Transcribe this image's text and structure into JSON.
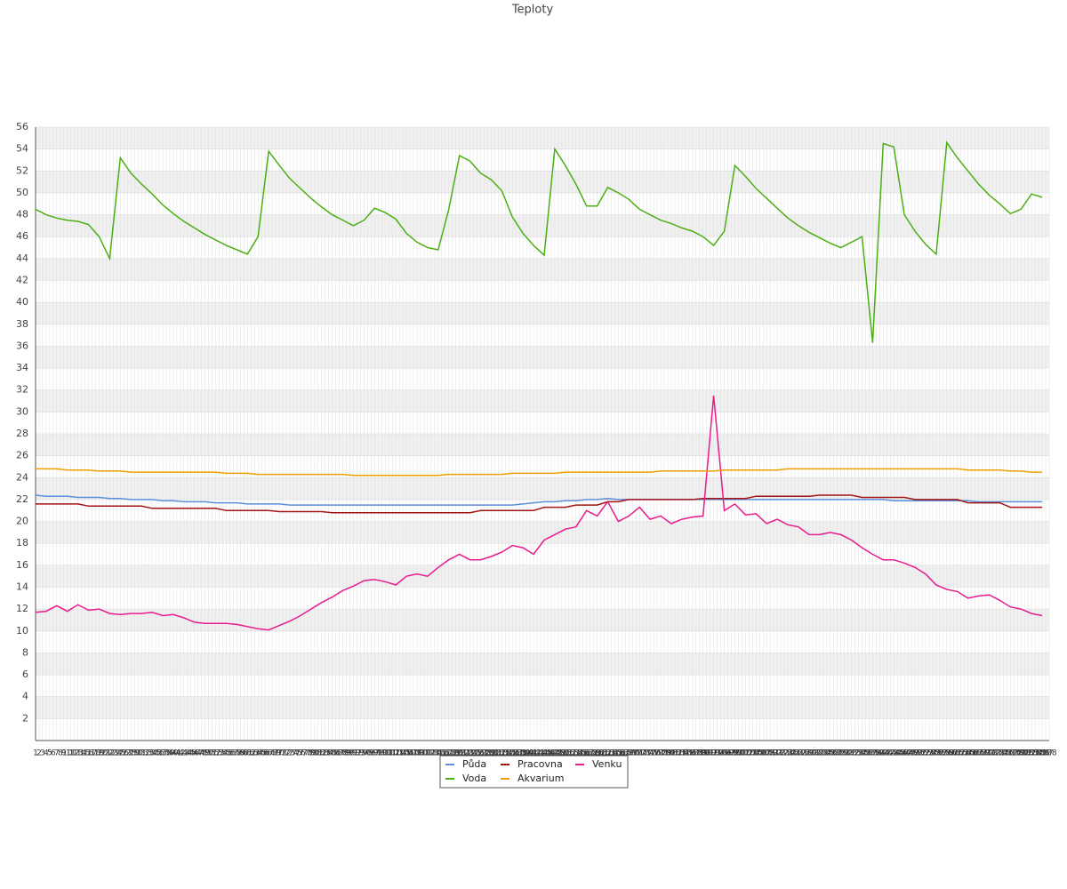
{
  "chart_data": {
    "type": "line",
    "title": "Teploty",
    "x": [
      1,
      4,
      7,
      10,
      13,
      16,
      19,
      22,
      25,
      28,
      31,
      34,
      37,
      40,
      43,
      46,
      49,
      52,
      55,
      58,
      61,
      64,
      67,
      70,
      73,
      76,
      79,
      82,
      85,
      88,
      91,
      94,
      97,
      100,
      103,
      106,
      109,
      112,
      115,
      118,
      121,
      124,
      127,
      130,
      133,
      136,
      139,
      142,
      145,
      148,
      151,
      154,
      157,
      160,
      163,
      166,
      169,
      172,
      175,
      178,
      181,
      184,
      187,
      190,
      193,
      196,
      199,
      202,
      205,
      208,
      211,
      214,
      217,
      220,
      223,
      226,
      229,
      232,
      235,
      238,
      241,
      244,
      247,
      250,
      253,
      256,
      259,
      262,
      265,
      268,
      271,
      274,
      277,
      280,
      283,
      286
    ],
    "series": [
      {
        "name": "Půda",
        "color": "#5b8fd9",
        "values": [
          22.4,
          22.3,
          22.3,
          22.3,
          22.2,
          22.2,
          22.2,
          22.1,
          22.1,
          22.0,
          22.0,
          22.0,
          21.9,
          21.9,
          21.8,
          21.8,
          21.8,
          21.7,
          21.7,
          21.7,
          21.6,
          21.6,
          21.6,
          21.6,
          21.5,
          21.5,
          21.5,
          21.5,
          21.5,
          21.5,
          21.5,
          21.5,
          21.5,
          21.5,
          21.5,
          21.5,
          21.5,
          21.5,
          21.5,
          21.5,
          21.5,
          21.5,
          21.5,
          21.5,
          21.5,
          21.5,
          21.6,
          21.7,
          21.8,
          21.8,
          21.9,
          21.9,
          22.0,
          22.0,
          22.1,
          22.0,
          22.0,
          22.0,
          22.0,
          22.0,
          22.0,
          22.0,
          22.0,
          22.0,
          22.0,
          22.0,
          22.0,
          22.0,
          22.0,
          22.0,
          22.0,
          22.0,
          22.0,
          22.0,
          22.0,
          22.0,
          22.0,
          22.0,
          22.0,
          22.0,
          22.0,
          21.9,
          21.9,
          21.9,
          21.9,
          21.9,
          21.9,
          21.9,
          21.9,
          21.8,
          21.8,
          21.8,
          21.8,
          21.8,
          21.8,
          21.8
        ]
      },
      {
        "name": "Pracovna",
        "color": "#a31515",
        "values": [
          21.6,
          21.6,
          21.6,
          21.6,
          21.6,
          21.4,
          21.4,
          21.4,
          21.4,
          21.4,
          21.4,
          21.2,
          21.2,
          21.2,
          21.2,
          21.2,
          21.2,
          21.2,
          21.0,
          21.0,
          21.0,
          21.0,
          21.0,
          20.9,
          20.9,
          20.9,
          20.9,
          20.9,
          20.8,
          20.8,
          20.8,
          20.8,
          20.8,
          20.8,
          20.8,
          20.8,
          20.8,
          20.8,
          20.8,
          20.8,
          20.8,
          20.8,
          21.0,
          21.0,
          21.0,
          21.0,
          21.0,
          21.0,
          21.3,
          21.3,
          21.3,
          21.5,
          21.5,
          21.5,
          21.8,
          21.8,
          22.0,
          22.0,
          22.0,
          22.0,
          22.0,
          22.0,
          22.0,
          22.1,
          22.1,
          22.1,
          22.1,
          22.1,
          22.3,
          22.3,
          22.3,
          22.3,
          22.3,
          22.3,
          22.4,
          22.4,
          22.4,
          22.4,
          22.2,
          22.2,
          22.2,
          22.2,
          22.2,
          22.0,
          22.0,
          22.0,
          22.0,
          22.0,
          21.7,
          21.7,
          21.7,
          21.7,
          21.3,
          21.3,
          21.3,
          21.3
        ]
      },
      {
        "name": "Venku",
        "color": "#e81c8c",
        "values": [
          11.7,
          11.8,
          12.3,
          11.8,
          12.4,
          11.9,
          12,
          11.6,
          11.5,
          11.6,
          11.6,
          11.7,
          11.4,
          11.5,
          11.2,
          10.8,
          10.7,
          10.7,
          10.7,
          10.6,
          10.4,
          10.2,
          10.1,
          10.5,
          10.9,
          11.4,
          12,
          12.6,
          13.1,
          13.7,
          14.1,
          14.6,
          14.7,
          14.5,
          14.2,
          15,
          15.2,
          15,
          15.8,
          16.5,
          17,
          16.5,
          16.5,
          16.8,
          17.2,
          17.8,
          17.6,
          17,
          18.3,
          18.8,
          19.3,
          19.5,
          21,
          20.5,
          21.8,
          20,
          20.5,
          21.3,
          20.2,
          20.5,
          19.8,
          20.2,
          20.4,
          20.5,
          31.5,
          21,
          21.6,
          20.6,
          20.7,
          19.8,
          20.2,
          19.7,
          19.5,
          18.8,
          18.8,
          19,
          18.8,
          18.3,
          17.6,
          17,
          16.5,
          16.5,
          16.2,
          15.8,
          15.2,
          14.2,
          13.8,
          13.6,
          13,
          13.2,
          13.3,
          12.8,
          12.2,
          12,
          11.6,
          11.4
        ]
      },
      {
        "name": "Voda",
        "color": "#4caf14",
        "values": [
          48.5,
          48,
          47.7,
          47.5,
          47.4,
          47.1,
          46,
          44,
          53.2,
          51.8,
          50.8,
          49.9,
          48.9,
          48.1,
          47.4,
          46.8,
          46.2,
          45.7,
          45.2,
          44.8,
          44.4,
          46,
          53.8,
          52.5,
          51.3,
          50.4,
          49.5,
          48.7,
          48,
          47.5,
          47,
          47.5,
          48.6,
          48.2,
          47.6,
          46.3,
          45.5,
          45,
          44.8,
          48.5,
          53.4,
          52.9,
          51.8,
          51.2,
          50.2,
          47.8,
          46.3,
          45.2,
          44.3,
          54,
          52.5,
          50.8,
          48.8,
          48.8,
          50.5,
          50,
          49.4,
          48.5,
          48,
          47.5,
          47.2,
          46.8,
          46.5,
          46,
          45.2,
          46.5,
          52.5,
          51.5,
          50.4,
          49.5,
          48.6,
          47.7,
          47,
          46.4,
          45.9,
          45.4,
          45,
          45.5,
          46,
          36.3,
          54.5,
          54.2,
          48,
          46.5,
          45.3,
          44.4,
          54.6,
          53.2,
          52,
          50.8,
          49.8,
          49,
          48.1,
          48.5,
          49.9,
          49.6
        ]
      },
      {
        "name": "Akvarium",
        "color": "#f0a000",
        "values": [
          24.8,
          24.8,
          24.8,
          24.7,
          24.7,
          24.7,
          24.6,
          24.6,
          24.6,
          24.5,
          24.5,
          24.5,
          24.5,
          24.5,
          24.5,
          24.5,
          24.5,
          24.5,
          24.4,
          24.4,
          24.4,
          24.3,
          24.3,
          24.3,
          24.3,
          24.3,
          24.3,
          24.3,
          24.3,
          24.3,
          24.2,
          24.2,
          24.2,
          24.2,
          24.2,
          24.2,
          24.2,
          24.2,
          24.2,
          24.3,
          24.3,
          24.3,
          24.3,
          24.3,
          24.3,
          24.4,
          24.4,
          24.4,
          24.4,
          24.4,
          24.5,
          24.5,
          24.5,
          24.5,
          24.5,
          24.5,
          24.5,
          24.5,
          24.5,
          24.6,
          24.6,
          24.6,
          24.6,
          24.6,
          24.6,
          24.7,
          24.7,
          24.7,
          24.7,
          24.7,
          24.7,
          24.8,
          24.8,
          24.8,
          24.8,
          24.8,
          24.8,
          24.8,
          24.8,
          24.8,
          24.8,
          24.8,
          24.8,
          24.8,
          24.8,
          24.8,
          24.8,
          24.8,
          24.7,
          24.7,
          24.7,
          24.7,
          24.6,
          24.6,
          24.5,
          24.5
        ]
      }
    ],
    "xlim": [
      1,
      288
    ],
    "xticks": [
      1,
      2,
      3,
      4,
      5,
      6,
      7,
      8,
      9,
      10,
      11,
      12,
      13,
      14,
      15,
      16,
      17,
      18,
      19,
      20,
      21,
      22,
      23,
      24,
      25,
      26,
      27,
      28,
      29,
      30,
      31,
      32,
      33,
      34,
      35,
      36,
      37,
      38,
      39,
      40,
      41,
      42,
      43,
      44,
      45,
      46,
      47,
      48,
      49,
      50,
      51,
      52,
      53,
      54,
      55,
      56,
      57,
      58,
      59,
      60,
      61,
      62,
      63,
      64,
      65,
      66,
      67,
      68,
      69,
      70,
      71,
      72,
      73,
      74,
      75,
      76,
      77,
      78,
      79,
      80,
      81,
      82,
      83,
      84,
      85,
      86,
      87,
      88,
      89,
      90,
      91,
      92,
      93,
      94,
      95,
      96,
      97,
      98,
      99,
      100,
      101,
      102,
      103,
      104,
      105,
      106,
      107,
      108,
      109,
      110,
      111,
      112,
      113,
      114,
      115,
      116,
      117,
      118,
      119,
      120,
      121,
      122,
      123,
      124,
      125,
      126,
      127,
      128,
      129,
      130,
      131,
      132,
      133,
      134,
      135,
      136,
      137,
      138,
      139,
      140,
      141,
      142,
      143,
      144,
      145,
      146,
      147,
      148,
      149,
      150,
      151,
      152,
      153,
      154,
      155,
      156,
      157,
      158,
      159,
      160,
      161,
      162,
      163,
      164,
      165,
      166,
      167,
      168,
      169,
      170,
      171,
      172,
      173,
      174,
      175,
      176,
      177,
      178,
      179,
      180,
      181,
      182,
      183,
      184,
      185,
      186,
      187,
      188,
      189,
      190,
      191,
      192,
      193,
      194,
      195,
      196,
      197,
      198,
      199,
      200,
      201,
      202,
      203,
      204,
      205,
      206,
      207,
      208,
      209,
      210,
      211,
      212,
      213,
      214,
      215,
      216,
      217,
      218,
      219,
      220,
      221,
      222,
      223,
      224,
      225,
      226,
      227,
      228,
      229,
      230,
      231,
      232,
      233,
      234,
      235,
      236,
      237,
      238,
      239,
      240,
      241,
      242,
      243,
      244,
      245,
      246,
      247,
      248,
      249,
      250,
      251,
      252,
      253,
      254,
      255,
      256,
      257,
      258,
      259,
      260,
      261,
      262,
      263,
      264,
      265,
      266,
      267,
      268,
      269,
      270,
      271,
      272,
      273,
      274,
      275,
      276,
      277,
      278,
      279,
      280,
      281,
      282,
      283,
      284,
      285,
      286,
      287,
      288
    ],
    "ylim": [
      0,
      56
    ],
    "yticks": [
      2,
      4,
      6,
      8,
      10,
      12,
      14,
      16,
      18,
      20,
      22,
      24,
      26,
      28,
      30,
      32,
      34,
      36,
      38,
      40,
      42,
      44,
      46,
      48,
      50,
      52,
      54,
      56
    ],
    "grid": true
  }
}
